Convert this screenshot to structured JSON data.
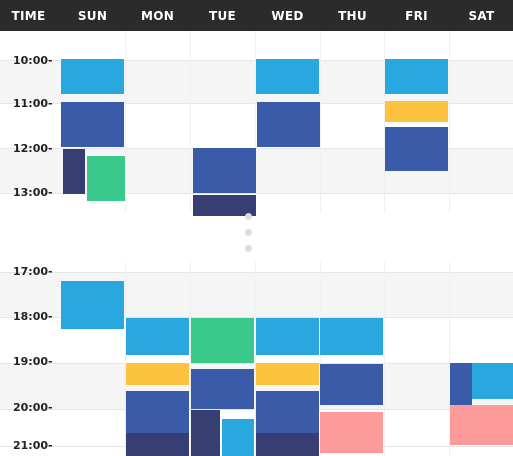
{
  "header": {
    "time_label": "TIME",
    "days": [
      "SUN",
      "MON",
      "TUE",
      "WED",
      "THU",
      "FRI",
      "SAT"
    ]
  },
  "time_labels": [
    "10:00-",
    "11:00-",
    "12:00-",
    "13:00-",
    "17:00-",
    "18:00-",
    "19:00-",
    "20:00-",
    "21:00-"
  ],
  "colors": {
    "header_bg": "#2b2b2b",
    "light_blue": "#29a8df",
    "blue": "#3a5ba8",
    "navy": "#373e72",
    "green": "#39c98a",
    "yellow": "#fdc33f",
    "pink": "#fd9a9a"
  }
}
